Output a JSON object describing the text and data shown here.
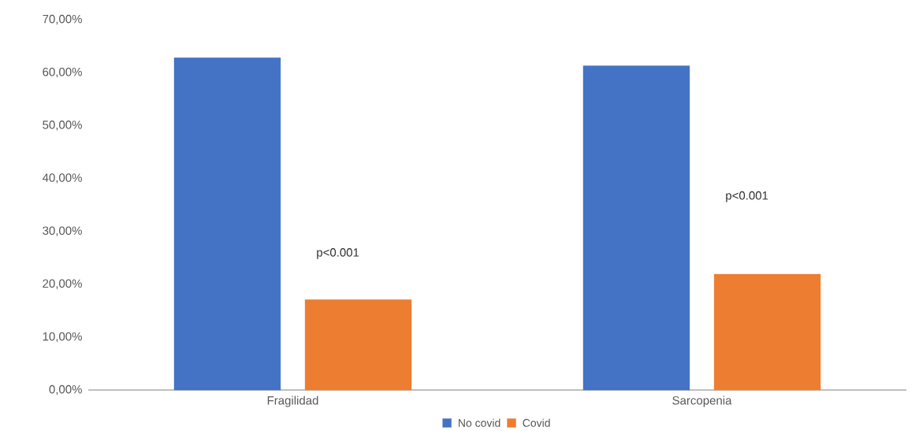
{
  "chart_data": {
    "type": "bar",
    "categories": [
      "Fragilidad",
      "Sarcopenia"
    ],
    "series": [
      {
        "name": "No covid",
        "color": "#4472c4",
        "values": [
          62.8,
          61.3
        ]
      },
      {
        "name": "Covid",
        "color": "#ed7d31",
        "values": [
          17.1,
          21.9
        ]
      }
    ],
    "ylim": [
      0,
      70
    ],
    "yticks": [
      {
        "value": 0,
        "label": "0,00%"
      },
      {
        "value": 10,
        "label": "10,00%"
      },
      {
        "value": 20,
        "label": "20,00%"
      },
      {
        "value": 30,
        "label": "30,00%"
      },
      {
        "value": 40,
        "label": "40,00%"
      },
      {
        "value": 50,
        "label": "50,00%"
      },
      {
        "value": 60,
        "label": "60,00%"
      },
      {
        "value": 70,
        "label": "70,00%"
      }
    ],
    "annotations": [
      "p<0.001",
      "p<0.001"
    ],
    "legend": "bottom"
  }
}
